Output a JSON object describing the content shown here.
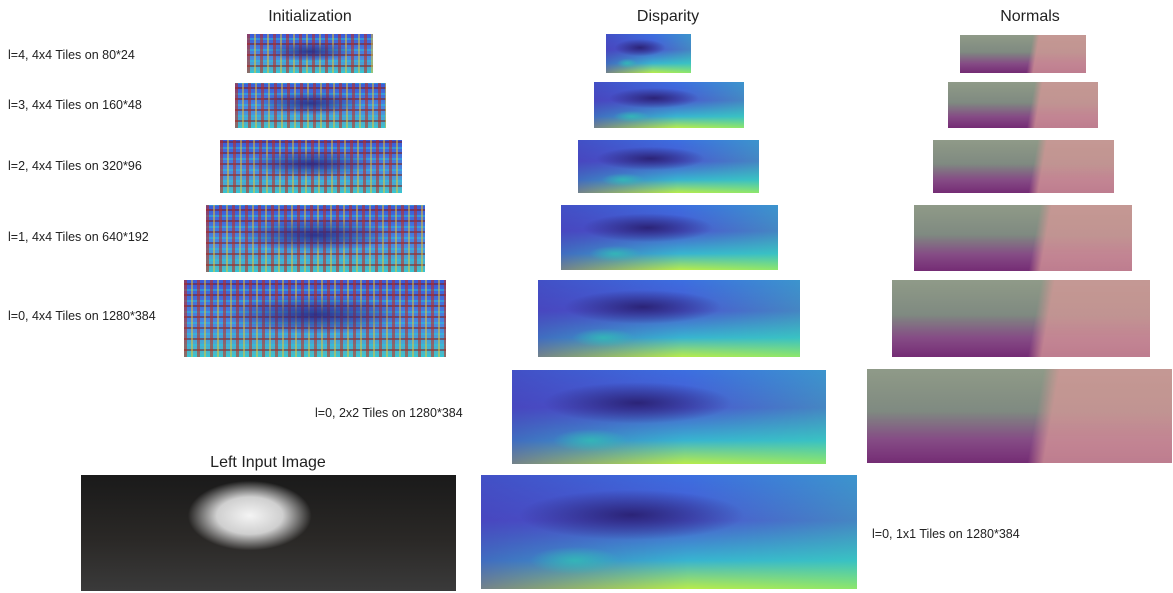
{
  "headers": {
    "initialization": "Initialization",
    "disparity": "Disparity",
    "normals": "Normals",
    "left_input": "Left Input Image"
  },
  "labels": [
    "l=4, 4x4 Tiles on 80*24",
    "l=3, 4x4 Tiles on 160*48",
    "l=2, 4x4 Tiles on 320*96",
    "l=1, 4x4 Tiles on 640*192",
    "l=0, 4x4 Tiles on 1280*384",
    "l=0, 2x2 Tiles on 1280*384",
    "l=0, 1x1 Tiles on 1280*384"
  ]
}
